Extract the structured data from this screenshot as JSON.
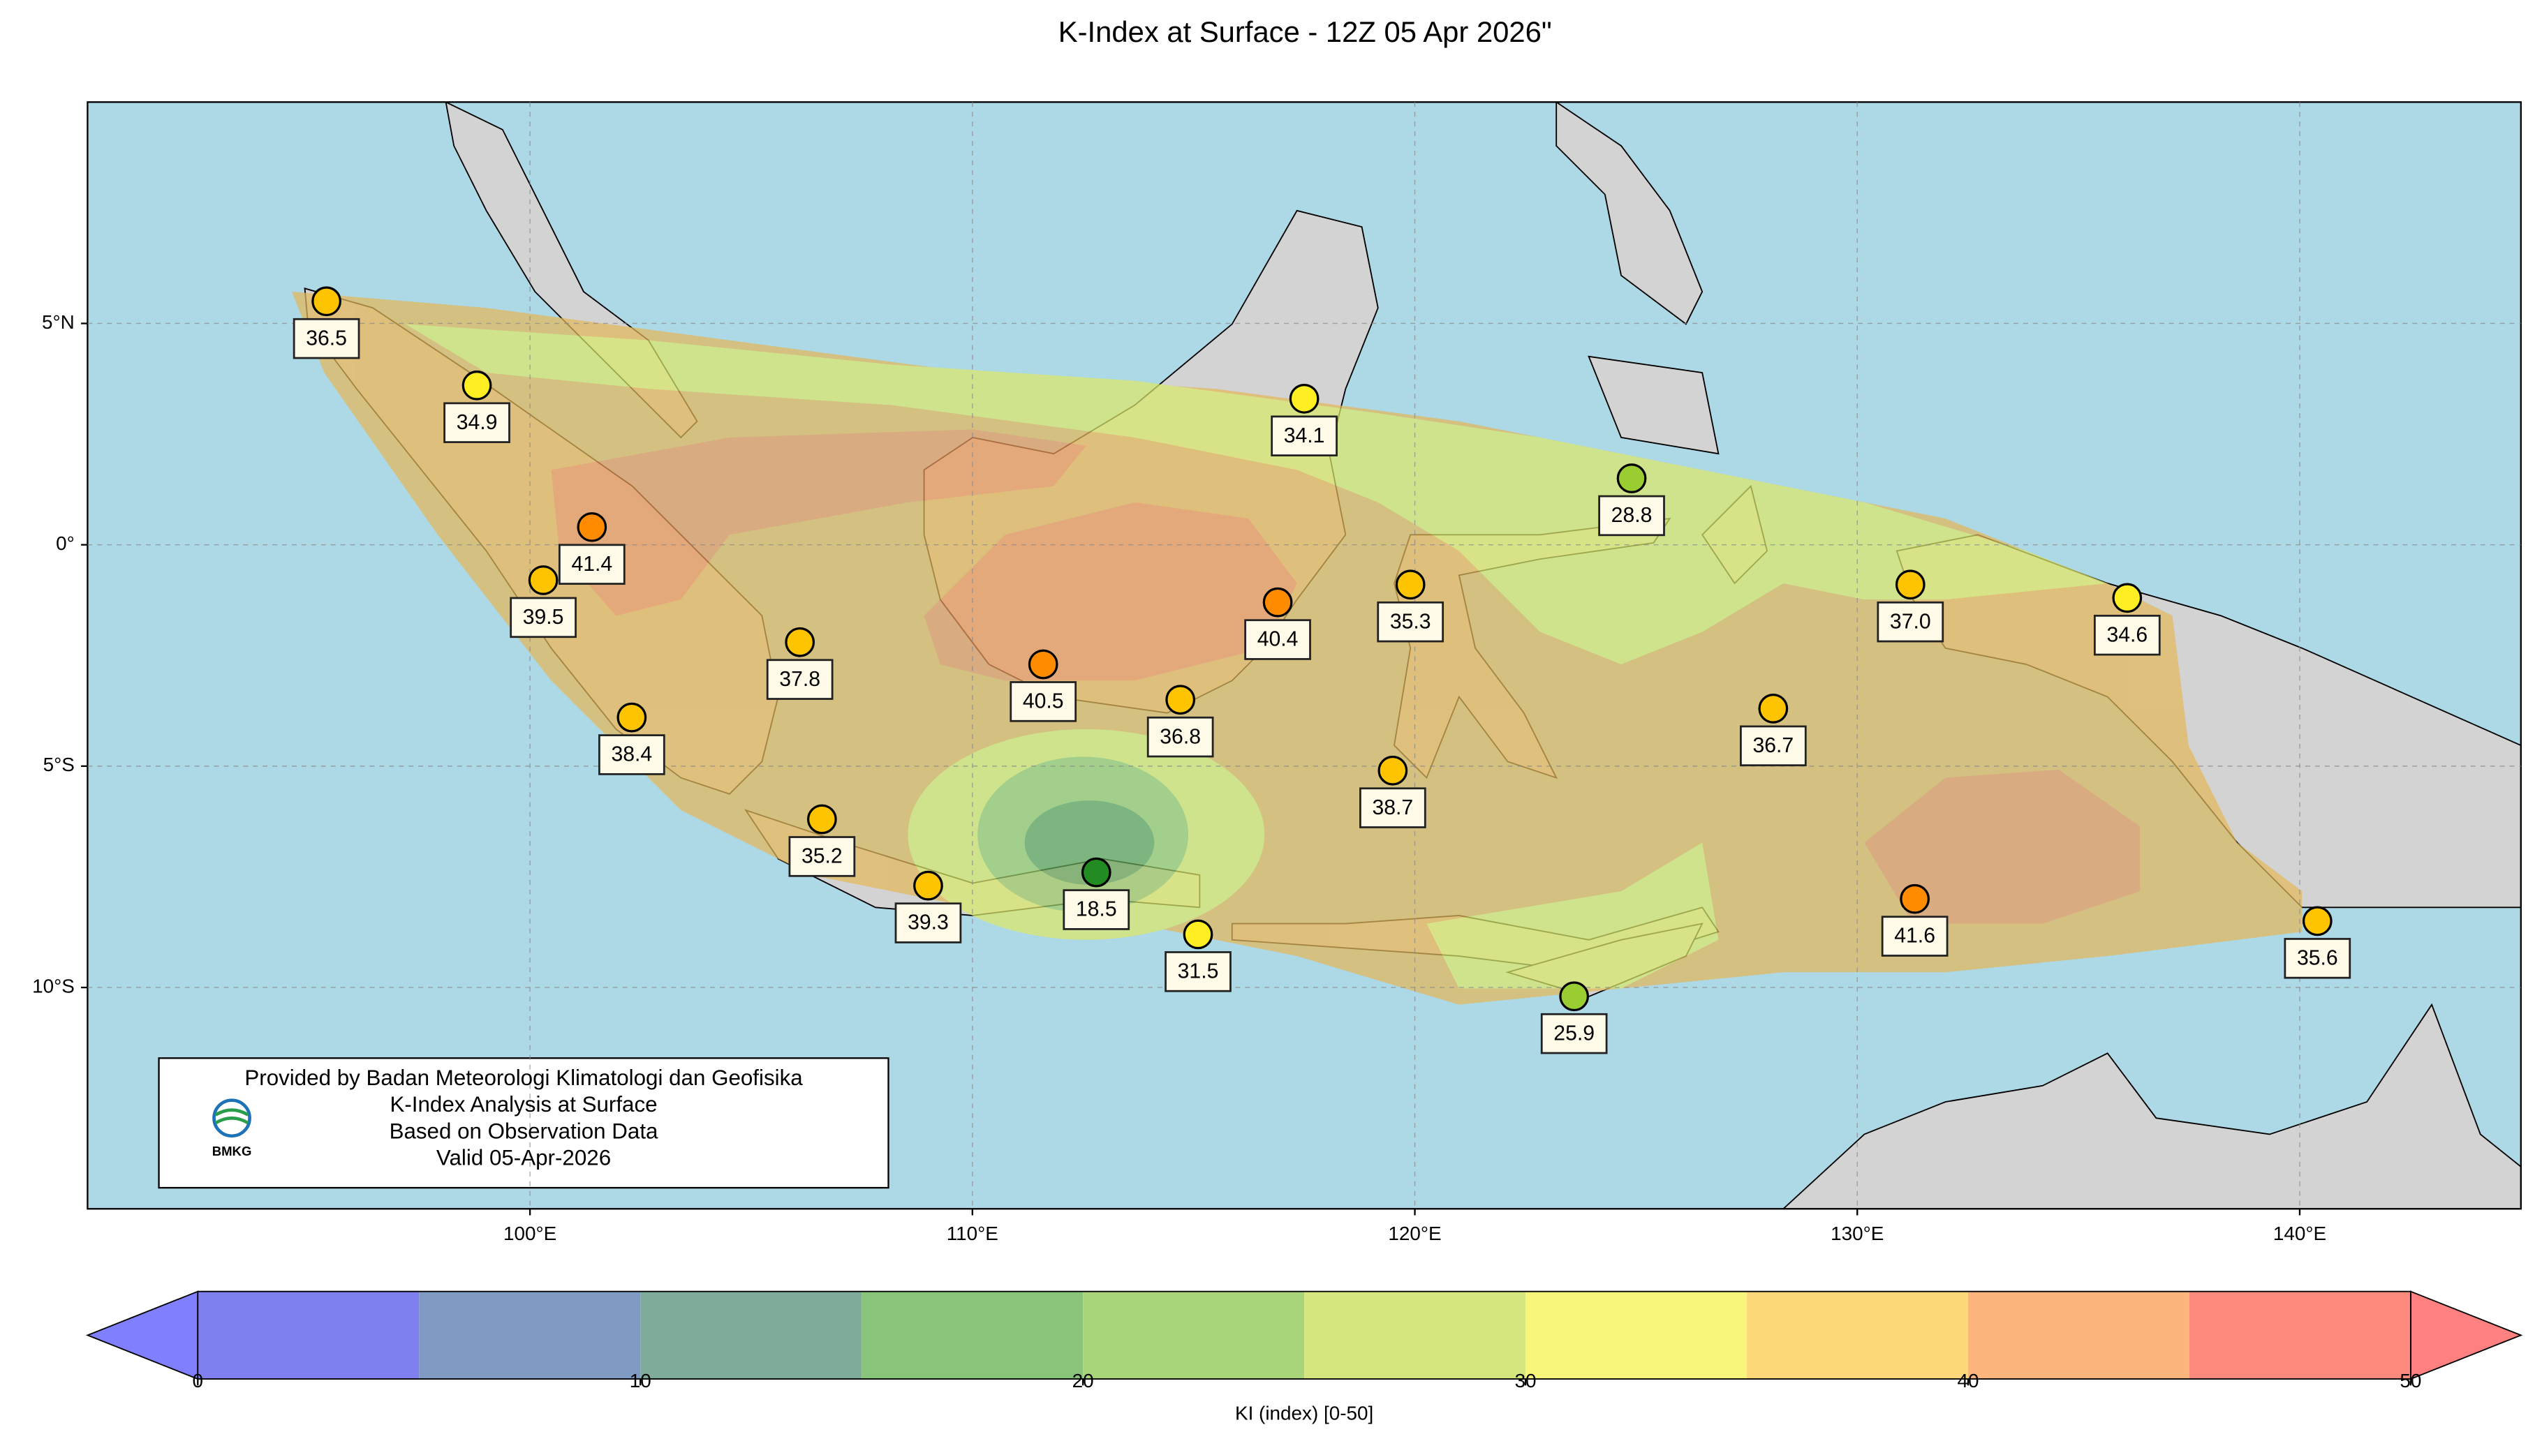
{
  "title": "K-Index at Surface - 12Z 05 Apr 2026\"",
  "map": {
    "lonlim": [
      90,
      145
    ],
    "latlim": [
      -15,
      10
    ],
    "xticks": [
      {
        "value": 100,
        "label": "100°E"
      },
      {
        "value": 110,
        "label": "110°E"
      },
      {
        "value": 120,
        "label": "120°E"
      },
      {
        "value": 130,
        "label": "130°E"
      },
      {
        "value": 140,
        "label": "140°E"
      }
    ],
    "yticks": [
      {
        "value": 5,
        "label": "5°N"
      },
      {
        "value": 0,
        "label": "0°"
      },
      {
        "value": -5,
        "label": "5°S"
      },
      {
        "value": -10,
        "label": "10°S"
      }
    ],
    "grid": true,
    "stations": [
      {
        "lon": 95.4,
        "lat": 5.5,
        "value": 36.5,
        "label": "36.5"
      },
      {
        "lon": 98.8,
        "lat": 3.6,
        "value": 34.9,
        "label": "34.9"
      },
      {
        "lon": 101.4,
        "lat": 0.4,
        "value": 41.4,
        "label": "41.4"
      },
      {
        "lon": 100.3,
        "lat": -0.8,
        "value": 39.5,
        "label": "39.5"
      },
      {
        "lon": 106.1,
        "lat": -2.2,
        "value": 37.8,
        "label": "37.8"
      },
      {
        "lon": 102.3,
        "lat": -3.9,
        "value": 38.4,
        "label": "38.4"
      },
      {
        "lon": 106.6,
        "lat": -6.2,
        "value": 35.2,
        "label": "35.2"
      },
      {
        "lon": 109.0,
        "lat": -7.7,
        "value": 39.3,
        "label": "39.3"
      },
      {
        "lon": 111.6,
        "lat": -2.7,
        "value": 40.5,
        "label": "40.5"
      },
      {
        "lon": 112.8,
        "lat": -7.4,
        "value": 18.5,
        "label": "18.5"
      },
      {
        "lon": 114.7,
        "lat": -3.5,
        "value": 36.8,
        "label": "36.8"
      },
      {
        "lon": 115.1,
        "lat": -8.8,
        "value": 31.5,
        "label": "31.5"
      },
      {
        "lon": 117.5,
        "lat": 3.3,
        "value": 34.1,
        "label": "34.1"
      },
      {
        "lon": 116.9,
        "lat": -1.3,
        "value": 40.4,
        "label": "40.4"
      },
      {
        "lon": 119.9,
        "lat": -0.9,
        "value": 35.3,
        "label": "35.3"
      },
      {
        "lon": 119.5,
        "lat": -5.1,
        "value": 38.7,
        "label": "38.7"
      },
      {
        "lon": 124.9,
        "lat": 1.5,
        "value": 28.8,
        "label": "28.8"
      },
      {
        "lon": 123.6,
        "lat": -10.2,
        "value": 25.9,
        "label": "25.9"
      },
      {
        "lon": 128.1,
        "lat": -3.7,
        "value": 36.7,
        "label": "36.7"
      },
      {
        "lon": 131.2,
        "lat": -0.9,
        "value": 37.0,
        "label": "37.0"
      },
      {
        "lon": 131.3,
        "lat": -8.0,
        "value": 41.6,
        "label": "41.6"
      },
      {
        "lon": 136.1,
        "lat": -1.2,
        "value": 34.6,
        "label": "34.6"
      },
      {
        "lon": 140.4,
        "lat": -8.5,
        "value": 35.6,
        "label": "35.6"
      }
    ]
  },
  "colorbar": {
    "label": "KI (index) [0-50]",
    "lim": [
      0,
      50
    ],
    "ticks": [
      0,
      10,
      20,
      30,
      40,
      50
    ],
    "levels": [
      0,
      5,
      10,
      15,
      20,
      25,
      30,
      35,
      40,
      45,
      50
    ],
    "colors": [
      "#7f7ff0",
      "#7f9bc4",
      "#7fab9b",
      "#88c57a",
      "#a8d47a",
      "#d4e67d",
      "#f7f57a",
      "#fdd87a",
      "#fdb57e",
      "#fd8a7d"
    ],
    "marker_colors": [
      "#4040ff",
      "#4070c0",
      "#2e8b57",
      "#228b22",
      "#6ab82a",
      "#9acd32",
      "#ffee22",
      "#ffc400",
      "#ff8c00",
      "#ff4500"
    ],
    "under_color": "#8080ff",
    "over_color": "#ff8080"
  },
  "info_box": {
    "lines": [
      "Provided by Badan Meteorologi Klimatologi dan Geofisika",
      "K-Index Analysis at Surface",
      "Based on Observation Data",
      "Valid 05-Apr-2026"
    ],
    "logo": "BMKG"
  }
}
